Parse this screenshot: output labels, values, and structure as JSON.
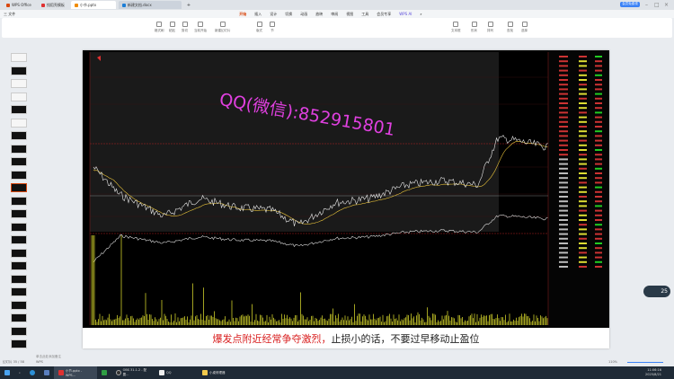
{
  "tabs": [
    {
      "label": "WPS Office",
      "color": "#d9480f"
    },
    {
      "label": "找稻壳模板",
      "color": "#e03131"
    },
    {
      "label": "小节.pptx",
      "color": "#f08c00"
    },
    {
      "label": "新建文档.docx",
      "color": "#1c7ed6"
    }
  ],
  "quick_bar": {
    "file": "三 文件"
  },
  "menu": [
    "开始",
    "插入",
    "设计",
    "切换",
    "动画",
    "放映",
    "审阅",
    "视图",
    "工具",
    "会员专享",
    "WPS AI"
  ],
  "menu_selected": "开始",
  "ribbon": [
    "格式刷",
    "粘贴",
    "剪切",
    "当前开始",
    "新建幻灯片",
    "版式",
    "节",
    "文本框",
    "形状",
    "排列",
    "查找",
    "选择"
  ],
  "vip_label": "会员免费领",
  "share_label": "分享",
  "slide": {
    "watermark": "QQ(微信):852915801",
    "caption_red": "爆发点附近经常争夺激烈，",
    "caption_black": "止损小的话，不要过早移动止盈位"
  },
  "notes_placeholder": "单击此处添加备注",
  "status": {
    "slide": "幻灯片 35 / 58",
    "theme": "WPS",
    "zoom": "110%"
  },
  "taskbar": {
    "apps": [
      "小节.pptx - WPS...",
      "",
      "OBS 31.1.2 - 配置...",
      "QQ",
      "小桌修理器"
    ],
    "time": "11:06:16",
    "date": "2025/8/21"
  },
  "side_bubble": "25",
  "colors": {
    "accent": "#d9480f",
    "price_line": "#e8e8e8",
    "avg_line": "#e8c23a",
    "volume": "#e8e830",
    "grid": "#b02020"
  }
}
